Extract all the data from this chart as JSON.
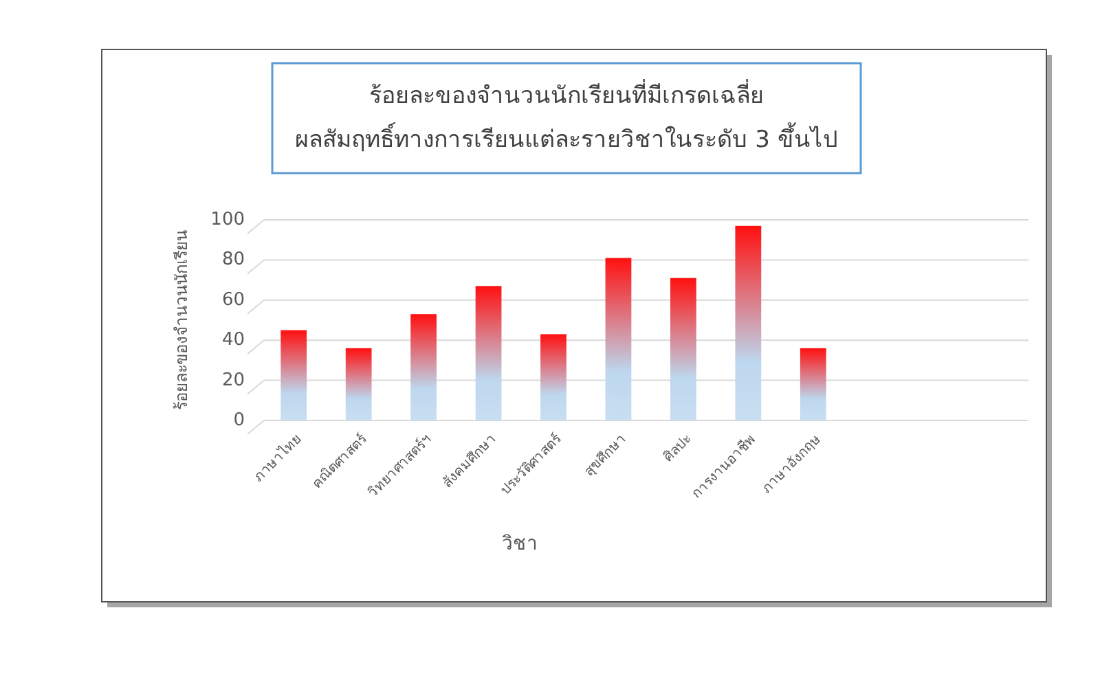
{
  "chart_data": {
    "type": "bar",
    "title": "ร้อยละของจำนวนนักเรียนที่มีเกรดเฉลี่ย\nผลสัมฤทธิ์ทางการเรียนแต่ละรายวิชาในระดับ 3 ขึ้นไป",
    "xlabel": "วิชา",
    "ylabel": "ร้อยละของจำนวนนักเรียน",
    "categories": [
      "ภาษาไทย",
      "คณิตศาสตร์",
      "วิทยาศาสตร์ฯ",
      "สังคมศึกษา",
      "ประวัติศาสตร์",
      "สุขศึกษา",
      "ศิลปะ",
      "การงานอาชีพ",
      "ภาษาอังกฤษ"
    ],
    "values": [
      45,
      36,
      53,
      67,
      43,
      81,
      71,
      97,
      36
    ],
    "color": "#ff1010",
    "ylim": [
      0,
      100
    ],
    "yticks": [
      0,
      20,
      40,
      60,
      80,
      100
    ],
    "grid": "y"
  }
}
